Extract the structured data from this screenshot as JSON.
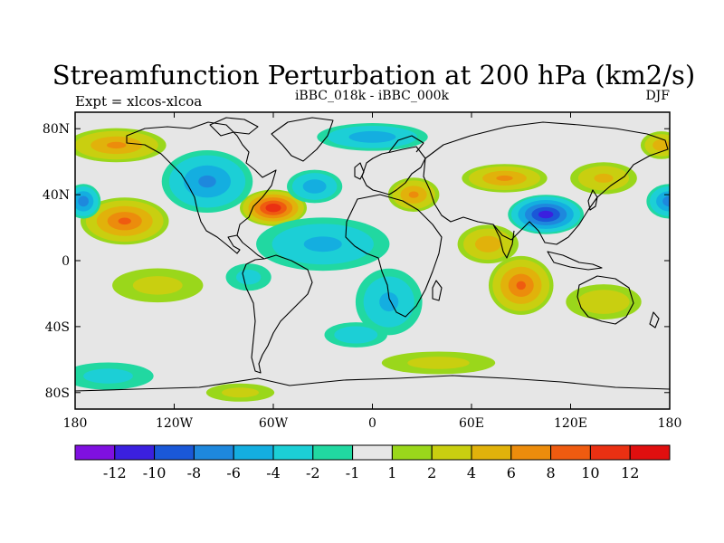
{
  "chart_data": {
    "type": "heatmap",
    "title": "Streamfunction Perturbation at 200 hPa (km2/s)",
    "subtitle_left": "Expt = xlcos-xlcoa",
    "subtitle_center": "iBBC_018k - iBBC_000k",
    "subtitle_right": "DJF",
    "x_ticks": [
      {
        "value": -180,
        "label": "180"
      },
      {
        "value": -120,
        "label": "120W"
      },
      {
        "value": -60,
        "label": "60W"
      },
      {
        "value": 0,
        "label": "0"
      },
      {
        "value": 60,
        "label": "60E"
      },
      {
        "value": 120,
        "label": "120E"
      },
      {
        "value": 180,
        "label": "180"
      }
    ],
    "y_ticks": [
      {
        "value": 80,
        "label": "80N"
      },
      {
        "value": 40,
        "label": "40N"
      },
      {
        "value": 0,
        "label": "0"
      },
      {
        "value": -40,
        "label": "40S"
      },
      {
        "value": -80,
        "label": "80S"
      }
    ],
    "xlim": [
      -180,
      180
    ],
    "ylim": [
      -90,
      90
    ],
    "colorbar": {
      "levels": [
        -12,
        -10,
        -8,
        -6,
        -4,
        -2,
        -1,
        1,
        2,
        4,
        6,
        8,
        10,
        12
      ],
      "labels": [
        "-12",
        "-10",
        "-8",
        "-6",
        "-4",
        "-2",
        "-1",
        "1",
        "2",
        "4",
        "6",
        "8",
        "10",
        "12"
      ],
      "colors": [
        "#7f10e0",
        "#3b20df",
        "#1a58d8",
        "#1e88dd",
        "#14aee0",
        "#1ccfd6",
        "#21d8a1",
        "#e6e6e6",
        "#9ad71b",
        "#c9cf10",
        "#e1b20b",
        "#ec8c0c",
        "#ef5b10",
        "#ea3012",
        "#e00f0f"
      ]
    },
    "field_features": [
      {
        "lon": -60,
        "lat": 32,
        "value": 11.5,
        "rx": 22,
        "ry": 12
      },
      {
        "lon": -100,
        "lat": 48,
        "value": -6,
        "rx": 32,
        "ry": 22
      },
      {
        "lon": -35,
        "lat": 45,
        "value": -5,
        "rx": 20,
        "ry": 12
      },
      {
        "lon": -150,
        "lat": 24,
        "value": 8,
        "rx": 30,
        "ry": 16
      },
      {
        "lon": -175,
        "lat": 36,
        "value": -7,
        "rx": 12,
        "ry": 12
      },
      {
        "lon": 180,
        "lat": 36,
        "value": -7,
        "rx": 16,
        "ry": 12
      },
      {
        "lon": -155,
        "lat": 70,
        "value": 6,
        "rx": 35,
        "ry": 12
      },
      {
        "lon": 175,
        "lat": 70,
        "value": 5,
        "rx": 15,
        "ry": 10
      },
      {
        "lon": 105,
        "lat": 28,
        "value": -11,
        "rx": 25,
        "ry": 13
      },
      {
        "lon": 80,
        "lat": 50,
        "value": 6,
        "rx": 30,
        "ry": 10
      },
      {
        "lon": 25,
        "lat": 40,
        "value": 6,
        "rx": 18,
        "ry": 12
      },
      {
        "lon": 140,
        "lat": 50,
        "value": 4,
        "rx": 25,
        "ry": 12
      },
      {
        "lon": 70,
        "lat": 10,
        "value": 5,
        "rx": 22,
        "ry": 14
      },
      {
        "lon": 90,
        "lat": -15,
        "value": 8,
        "rx": 22,
        "ry": 20
      },
      {
        "lon": 140,
        "lat": -25,
        "value": 3,
        "rx": 30,
        "ry": 14
      },
      {
        "lon": -30,
        "lat": 10,
        "value": -4,
        "rx": 50,
        "ry": 20
      },
      {
        "lon": 10,
        "lat": -25,
        "value": -4,
        "rx": 25,
        "ry": 25
      },
      {
        "lon": -10,
        "lat": -45,
        "value": -3,
        "rx": 25,
        "ry": 10
      },
      {
        "lon": -130,
        "lat": -15,
        "value": 2,
        "rx": 40,
        "ry": 15
      },
      {
        "lon": -75,
        "lat": -10,
        "value": -2,
        "rx": 20,
        "ry": 12
      },
      {
        "lon": -160,
        "lat": -70,
        "value": -2,
        "rx": 40,
        "ry": 12
      },
      {
        "lon": 40,
        "lat": -62,
        "value": 2,
        "rx": 50,
        "ry": 10
      },
      {
        "lon": 0,
        "lat": 75,
        "value": -5,
        "rx": 40,
        "ry": 10
      },
      {
        "lon": -80,
        "lat": -80,
        "value": 2,
        "rx": 30,
        "ry": 8
      }
    ]
  }
}
